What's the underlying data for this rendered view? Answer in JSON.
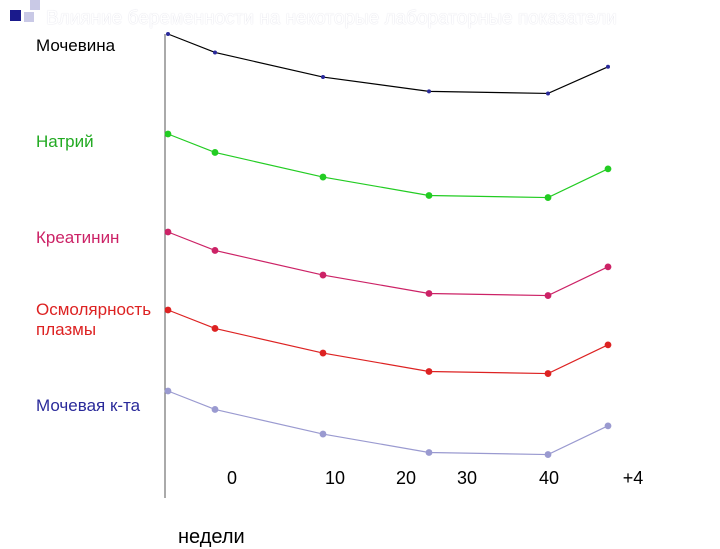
{
  "title": "Влияние беременности на некоторые лабораторные показатели",
  "chart_data": {
    "type": "line",
    "title": "Влияние беременности на некоторые лабораторные показатели",
    "xlabel": "недели",
    "ylabel": "",
    "x_tick_labels": [
      "0",
      "10",
      "20",
      "30",
      "40",
      "+4"
    ],
    "x": [
      "0",
      "5",
      "15",
      "25",
      "36",
      "+4"
    ],
    "grid": false,
    "legend": "none",
    "series": [
      {
        "name": "Мочевина",
        "color": "#2a2a9a",
        "line_color": "#000000",
        "values": [
          1.0,
          0.91,
          0.79,
          0.72,
          0.71,
          0.84
        ]
      },
      {
        "name": "Натрий",
        "color": "#22cc22",
        "line_color": "#22cc22",
        "values": [
          1.0,
          0.91,
          0.79,
          0.7,
          0.69,
          0.83
        ]
      },
      {
        "name": "Креатинин",
        "color": "#cc2266",
        "line_color": "#cc2266",
        "values": [
          1.0,
          0.91,
          0.79,
          0.7,
          0.69,
          0.83
        ]
      },
      {
        "name": "Осмолярность плазмы",
        "color": "#dd2222",
        "line_color": "#dd2222",
        "values": [
          1.0,
          0.91,
          0.79,
          0.7,
          0.69,
          0.83
        ]
      },
      {
        "name": "Мочевая к-та",
        "color": "#9a9ad0",
        "line_color": "#9a9ad0",
        "values": [
          1.0,
          0.91,
          0.79,
          0.7,
          0.69,
          0.83
        ]
      }
    ]
  },
  "labels": {
    "s0": "Мочевина",
    "s1": "Натрий",
    "s2": "Креатинин",
    "s3a": "Осмолярность",
    "s3b": "плазмы",
    "s4": "Мочевая к-та"
  }
}
